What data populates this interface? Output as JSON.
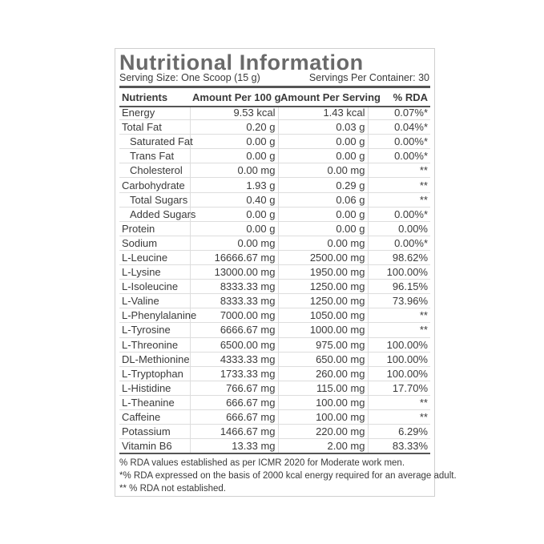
{
  "header": {
    "title": "Nutritional Information",
    "serving_size": "Serving Size: One Scoop (15 g)",
    "servings_per_container": "Servings Per Container: 30"
  },
  "table": {
    "columns": [
      "Nutrients",
      "Amount Per 100 g",
      "Amount Per Serving",
      "% RDA"
    ],
    "rows": [
      [
        "Energy",
        "9.53 kcal",
        "1.43 kcal",
        "0.07%*"
      ],
      [
        "Total Fat",
        "0.20 g",
        "0.03 g",
        "0.04%*"
      ],
      [
        "Saturated Fat",
        "0.00 g",
        "0.00 g",
        "0.00%*"
      ],
      [
        "Trans Fat",
        "0.00 g",
        "0.00 g",
        "0.00%*"
      ],
      [
        "Cholesterol",
        "0.00 mg",
        "0.00 mg",
        "**"
      ],
      [
        "Carbohydrate",
        "1.93 g",
        "0.29 g",
        "**"
      ],
      [
        "Total Sugars",
        "0.40 g",
        "0.06 g",
        "**"
      ],
      [
        "Added Sugars",
        "0.00 g",
        "0.00 g",
        "0.00%*"
      ],
      [
        "Protein",
        "0.00 g",
        "0.00 g",
        "0.00%"
      ],
      [
        "Sodium",
        "0.00 mg",
        "0.00 mg",
        "0.00%*"
      ],
      [
        "L-Leucine",
        "16666.67 mg",
        "2500.00 mg",
        "98.62%"
      ],
      [
        "L-Lysine",
        "13000.00 mg",
        "1950.00 mg",
        "100.00%"
      ],
      [
        "L-Isoleucine",
        "8333.33 mg",
        "1250.00 mg",
        "96.15%"
      ],
      [
        "L-Valine",
        "8333.33 mg",
        "1250.00 mg",
        "73.96%"
      ],
      [
        "L-Phenylalanine",
        "7000.00 mg",
        "1050.00 mg",
        "**"
      ],
      [
        "L-Tyrosine",
        "6666.67 mg",
        "1000.00 mg",
        "**"
      ],
      [
        "L-Threonine",
        "6500.00 mg",
        "975.00 mg",
        "100.00%"
      ],
      [
        "DL-Methionine",
        "4333.33 mg",
        "650.00 mg",
        "100.00%"
      ],
      [
        "L-Tryptophan",
        "1733.33 mg",
        "260.00 mg",
        "100.00%"
      ],
      [
        "L-Histidine",
        "766.67 mg",
        "115.00 mg",
        "17.70%"
      ],
      [
        "L-Theanine",
        "666.67 mg",
        "100.00 mg",
        "**"
      ],
      [
        "Caffeine",
        "666.67 mg",
        "100.00 mg",
        "**"
      ],
      [
        "Potassium",
        "1466.67 mg",
        "220.00 mg",
        "6.29%"
      ],
      [
        "Vitamin B6",
        "13.33 mg",
        "2.00 mg",
        "83.33%"
      ]
    ]
  },
  "footnotes": [
    "% RDA values established as per ICMR 2020 for Moderate work men.",
    "*% RDA expressed on the basis of 2000 kcal energy required for an average adult.",
    "** % RDA not established."
  ]
}
